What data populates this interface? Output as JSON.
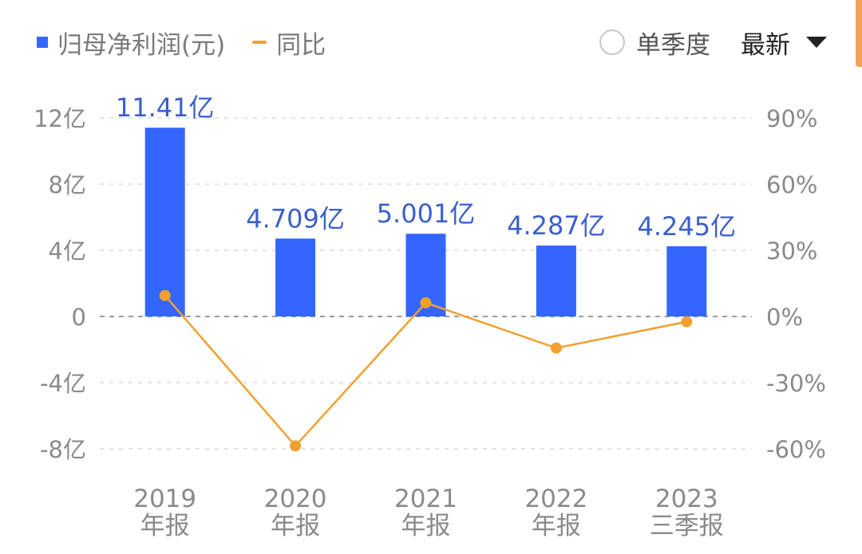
{
  "legend": {
    "bar_label": "归母净利润(元)",
    "line_label": "同比"
  },
  "controls": {
    "quarter_label": "单季度",
    "period_label": "最新"
  },
  "colors": {
    "bar": "#3366ff",
    "line": "#f0a030",
    "bar_label": "#3a5fcd",
    "axis_text": "#8a8a8a"
  },
  "chart_data": {
    "type": "bar",
    "categories": [
      "2019\n年报",
      "2020\n年报",
      "2021\n年报",
      "2022\n年报",
      "2023\n三季报"
    ],
    "series": [
      {
        "name": "归母净利润(元)",
        "type": "bar",
        "axis": "left",
        "values": [
          11.41,
          4.709,
          5.001,
          4.287,
          4.245
        ],
        "labels": [
          "11.41亿",
          "4.709亿",
          "5.001亿",
          "4.287亿",
          "4.245亿"
        ]
      },
      {
        "name": "同比",
        "type": "line",
        "axis": "right",
        "values": [
          9.5,
          -58.7,
          6.2,
          -14.3,
          -2.4
        ]
      }
    ],
    "y_left": {
      "range": [
        -8,
        12
      ],
      "ticks": [
        12,
        8,
        4,
        0,
        -4,
        -8
      ],
      "tick_labels": [
        "12亿",
        "8亿",
        "4亿",
        "0",
        "-4亿",
        "-8亿"
      ]
    },
    "y_right": {
      "range": [
        -60,
        90
      ],
      "ticks": [
        90,
        60,
        30,
        0,
        -30,
        -60
      ],
      "tick_labels": [
        "90%",
        "60%",
        "30%",
        "0%",
        "-30%",
        "-60%"
      ]
    },
    "grid": true,
    "legend_position": "top-left"
  }
}
